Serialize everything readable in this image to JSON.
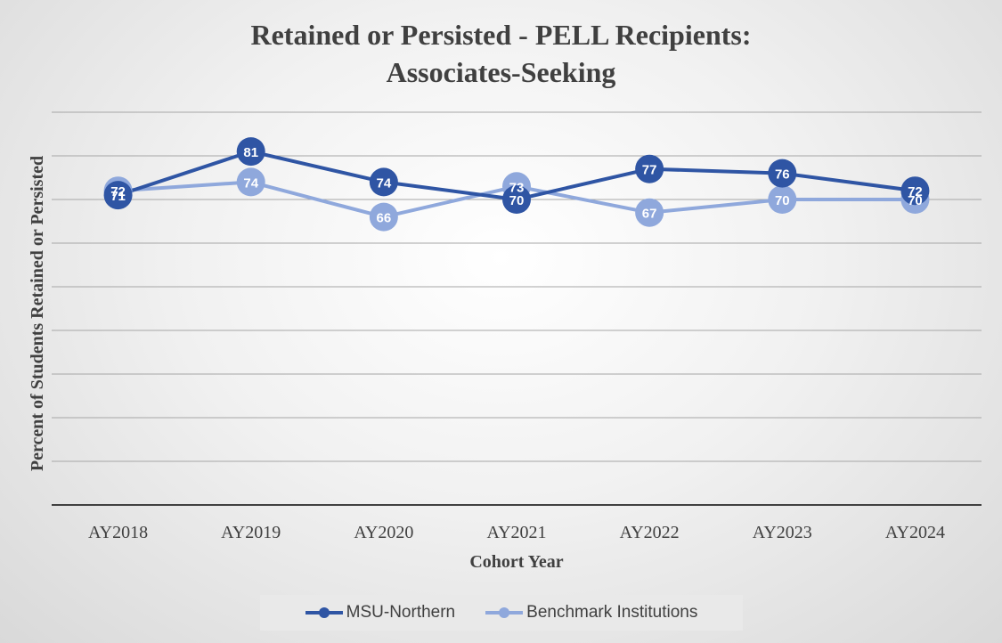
{
  "chart_data": {
    "type": "line",
    "title": [
      "Retained or Persisted - PELL Recipients:",
      "Associates-Seeking"
    ],
    "xlabel": "Cohort Year",
    "ylabel": "Percent of  Students Retained or Persisted",
    "categories": [
      "AY2018",
      "AY2019",
      "AY2020",
      "AY2021",
      "AY2022",
      "AY2023",
      "AY2024"
    ],
    "ylim": [
      0,
      90
    ],
    "gridlines": [
      10,
      20,
      30,
      40,
      50,
      60,
      70,
      80,
      90
    ],
    "y_tick_labels_shown": false,
    "grid": true,
    "legend_position": "bottom",
    "series": [
      {
        "name": "MSU-Northern",
        "values": [
          71,
          81,
          74,
          70,
          77,
          76,
          72
        ],
        "color": "#2f55a4"
      },
      {
        "name": "Benchmark Institutions",
        "values": [
          72,
          74,
          66,
          73,
          67,
          70,
          70
        ],
        "color": "#8fa8dc"
      }
    ]
  },
  "colors": {
    "gridline": "#a6a6a6",
    "axis": "#404040",
    "text": "#404040"
  }
}
